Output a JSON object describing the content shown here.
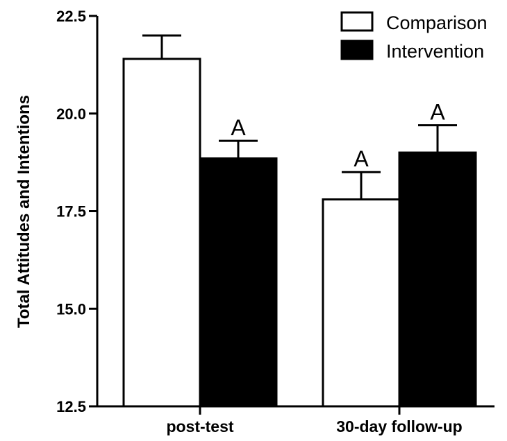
{
  "chart_data": {
    "type": "bar",
    "title": "",
    "xlabel": "",
    "ylabel": "Total Attitudes and Intentions",
    "categories": [
      "post-test",
      "30-day follow-up"
    ],
    "series": [
      {
        "name": "Comparison",
        "color": "#ffffff",
        "values": [
          21.4,
          17.8
        ],
        "errors": [
          0.6,
          0.7
        ],
        "annotations": [
          "",
          "A"
        ]
      },
      {
        "name": "Intervention",
        "color": "#000000",
        "values": [
          18.85,
          19.0
        ],
        "errors": [
          0.45,
          0.7
        ],
        "annotations": [
          "A",
          "A"
        ]
      }
    ],
    "ylim": [
      12.5,
      22.5
    ],
    "yticks": [
      "12.5",
      "15.0",
      "17.5",
      "20.0",
      "22.5"
    ],
    "error_bars": "upper",
    "grid": false,
    "legend_position": "top-right"
  }
}
